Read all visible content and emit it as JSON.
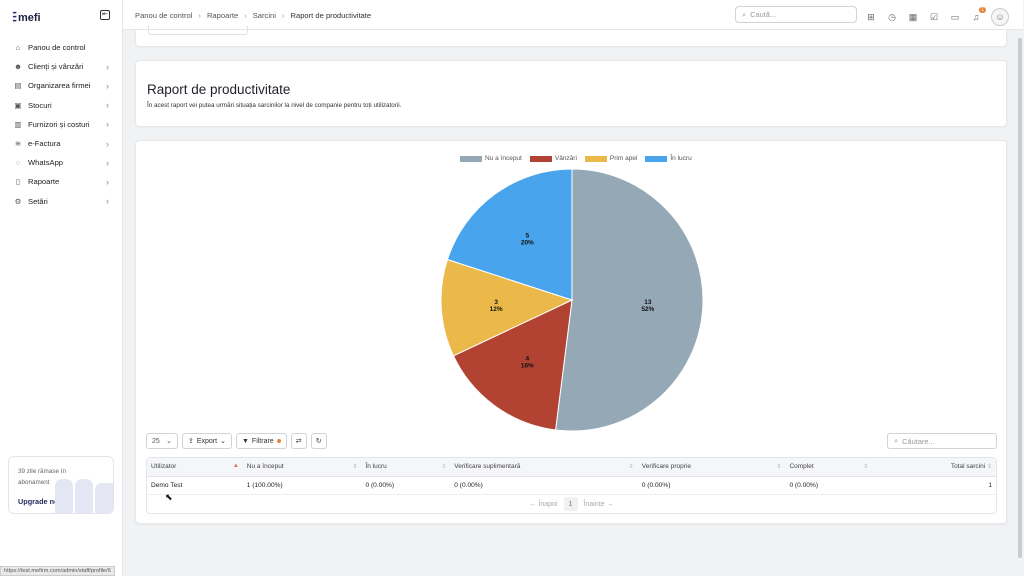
{
  "app": {
    "brand": "mefi",
    "url_status": "https://test.mefirm.com/admin/staff/profile/6"
  },
  "sidebar": {
    "items": [
      {
        "label": "Panou de control",
        "icon": "home-icon",
        "has_children": false
      },
      {
        "label": "Clienți și vânzări",
        "icon": "users-icon",
        "has_children": true
      },
      {
        "label": "Organizarea firmei",
        "icon": "building-icon",
        "has_children": true
      },
      {
        "label": "Stocuri",
        "icon": "box-icon",
        "has_children": true
      },
      {
        "label": "Furnizori și costuri",
        "icon": "truck-icon",
        "has_children": true
      },
      {
        "label": "e-Factura",
        "icon": "invoice-icon",
        "has_children": true
      },
      {
        "label": "WhatsApp",
        "icon": "chat-icon",
        "has_children": true
      },
      {
        "label": "Rapoarte",
        "icon": "clipboard-icon",
        "has_children": true
      },
      {
        "label": "Setări",
        "icon": "gear-icon",
        "has_children": true
      }
    ],
    "promo": {
      "text": "39 zile rămase în abonament",
      "link": "Upgrade now"
    }
  },
  "header": {
    "breadcrumbs": [
      "Panou de control",
      "Rapoarte",
      "Sarcini",
      "Raport de productivitate"
    ],
    "search_placeholder": "Caută...",
    "notification_count": "1"
  },
  "page": {
    "title": "Raport de productivitate",
    "description": "În acest raport vei putea urmări situația sarcinilor la nivel de companie pentru toți utilizatorii."
  },
  "chart_data": {
    "type": "pie",
    "legend_position": "top",
    "slices": [
      {
        "name": "Nu a început",
        "value": 13,
        "percent": "52%",
        "color": "#95a8b6"
      },
      {
        "name": "Vânzări",
        "value": 4,
        "percent": "16%",
        "color": "#b24232"
      },
      {
        "name": "Prim apel",
        "value": 3,
        "percent": "12%",
        "color": "#ebb94a"
      },
      {
        "name": "În lucru",
        "value": 5,
        "percent": "20%",
        "color": "#48a4ec"
      }
    ]
  },
  "table": {
    "page_size": "25",
    "export_label": "Export",
    "filter_label": "Filtrare",
    "search_placeholder": "Căutare...",
    "columns": [
      "Utilizator",
      "Nu a început",
      "În lucru",
      "Verificare suplimentară",
      "Verificare proprie",
      "Complet",
      "Total sarcini"
    ],
    "rows": [
      [
        "Demo Test",
        "1 (100.00%)",
        "0 (0.00%)",
        "0 (0.00%)",
        "0 (0.00%)",
        "0 (0.00%)",
        "1"
      ]
    ],
    "pager": {
      "prev": "Înapoi",
      "page": "1",
      "next": "Înainte"
    }
  }
}
